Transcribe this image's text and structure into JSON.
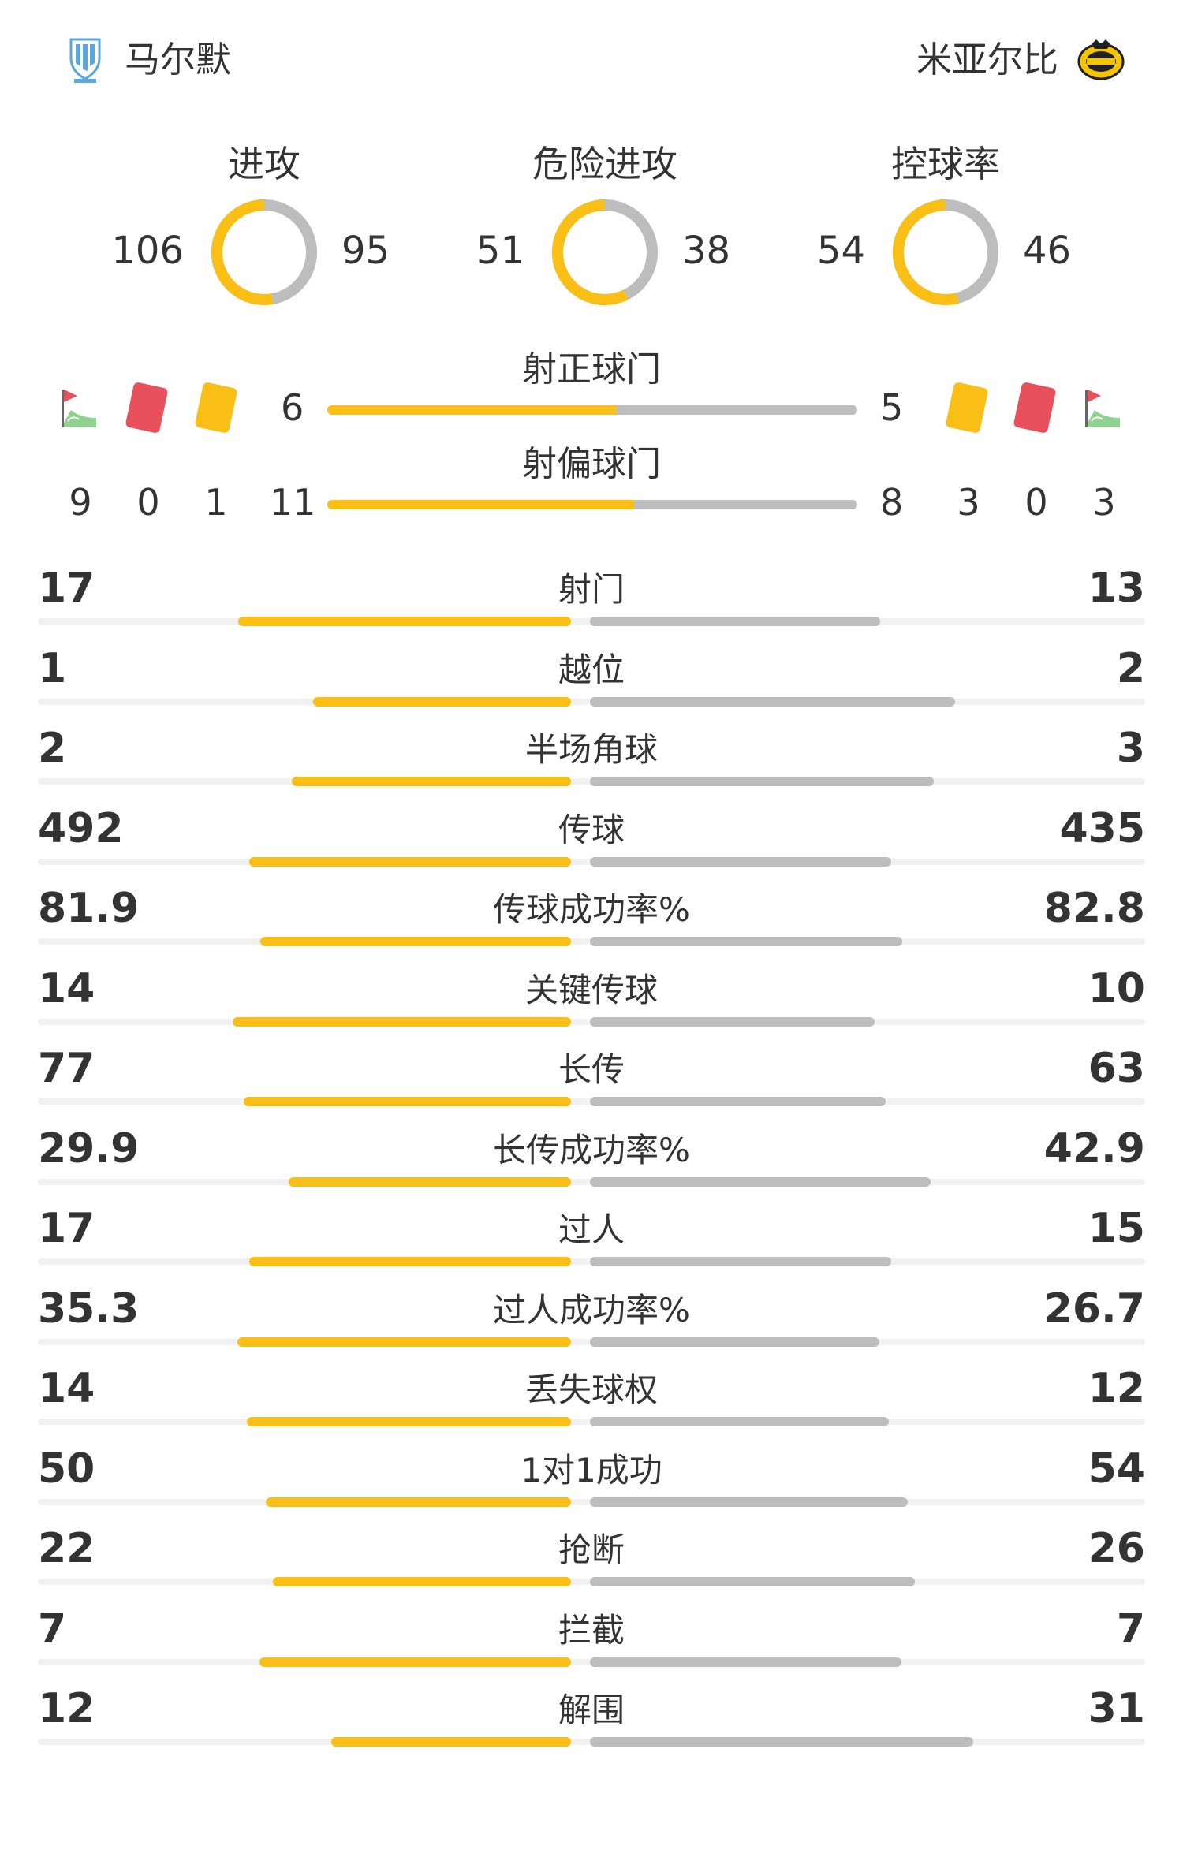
{
  "header": {
    "home_name": "马尔默",
    "away_name": "米亚尔比",
    "home_logo_icon": "malmo-ff-crest-icon",
    "away_logo_icon": "mjallby-aif-crest-icon"
  },
  "colors": {
    "home": "#f9bf16",
    "away": "#bdbdbd"
  },
  "rings": [
    {
      "title": "进攻",
      "home": 106,
      "away": 95
    },
    {
      "title": "危险进攻",
      "home": 51,
      "away": 38
    },
    {
      "title": "控球率",
      "home": 54,
      "away": 46
    }
  ],
  "shots_on": {
    "title": "射正球门",
    "home": 6,
    "away": 5
  },
  "shots_off": {
    "title": "射偏球门",
    "home": 11,
    "away": 8
  },
  "counts": {
    "home": {
      "corners": 9,
      "red": 0,
      "yellow": 1
    },
    "away": {
      "yellow": 3,
      "red": 0,
      "corners": 3
    }
  },
  "stats": [
    {
      "label": "射门",
      "home": "17",
      "away": "13"
    },
    {
      "label": "越位",
      "home": "1",
      "away": "2"
    },
    {
      "label": "半场角球",
      "home": "2",
      "away": "3"
    },
    {
      "label": "传球",
      "home": "492",
      "away": "435"
    },
    {
      "label": "传球成功率%",
      "home": "81.9",
      "away": "82.8"
    },
    {
      "label": "关键传球",
      "home": "14",
      "away": "10"
    },
    {
      "label": "长传",
      "home": "77",
      "away": "63"
    },
    {
      "label": "长传成功率%",
      "home": "29.9",
      "away": "42.9"
    },
    {
      "label": "过人",
      "home": "17",
      "away": "15"
    },
    {
      "label": "过人成功率%",
      "home": "35.3",
      "away": "26.7"
    },
    {
      "label": "丢失球权",
      "home": "14",
      "away": "12"
    },
    {
      "label": "1对1成功",
      "home": "50",
      "away": "54"
    },
    {
      "label": "抢断",
      "home": "22",
      "away": "26"
    },
    {
      "label": "拦截",
      "home": "7",
      "away": "7"
    },
    {
      "label": "解围",
      "home": "12",
      "away": "31"
    }
  ]
}
